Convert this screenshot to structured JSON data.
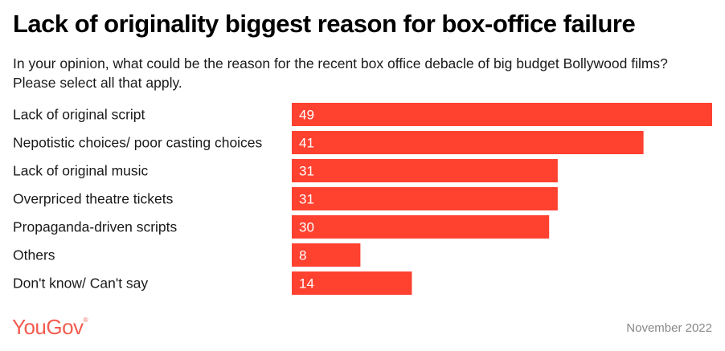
{
  "title": "Lack of originality biggest reason for box-office failure",
  "subtitle_line1": "In your opinion, what could be the reason for the recent box office debacle of big budget Bollywood films?",
  "subtitle_line2": "Please select all that apply.",
  "footer": {
    "logo": "YouGov",
    "logo_mark": "®",
    "date": "November 2022"
  },
  "colors": {
    "bar": "#ff4130",
    "logo": "#f25d50"
  },
  "chart_data": {
    "type": "bar",
    "orientation": "horizontal",
    "title": "Lack of originality biggest reason for box-office failure",
    "xlabel": "",
    "ylabel": "",
    "categories": [
      "Lack of original script",
      "Nepotistic choices/ poor casting choices",
      "Lack of original music",
      "Overpriced theatre tickets",
      "Propaganda-driven scripts",
      "Others",
      "Don't know/ Can't say"
    ],
    "values": [
      49,
      41,
      31,
      31,
      30,
      8,
      14
    ],
    "xlim": [
      0,
      49
    ],
    "grid": false,
    "legend": "none",
    "data_labels": true
  }
}
